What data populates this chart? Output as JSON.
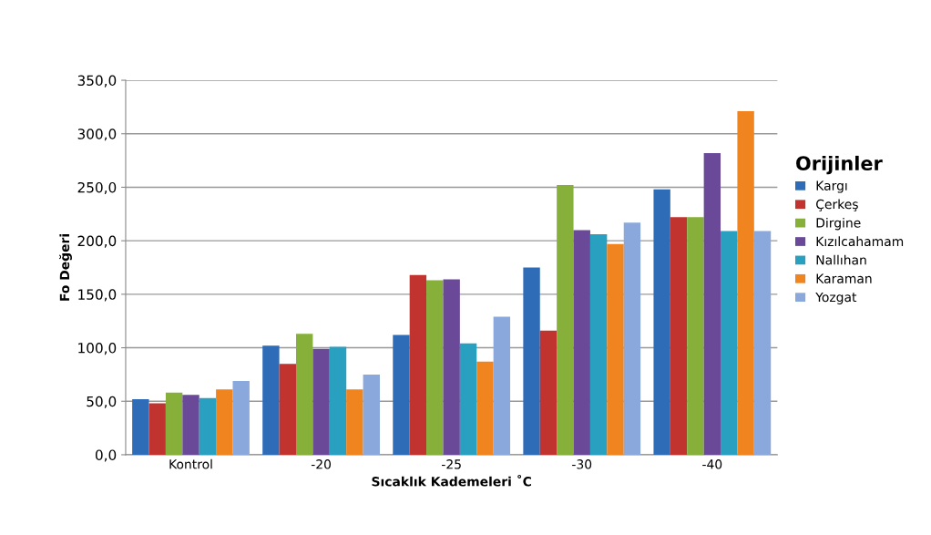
{
  "chart_data": {
    "type": "bar",
    "xlabel": "Sıcaklık Kademeleri ˚C",
    "ylabel": "Fo Değeri",
    "legend_title": "Orijinler",
    "categories": [
      "Kontrol",
      "-20",
      "-25",
      "-30",
      "-40"
    ],
    "series": [
      {
        "name": "Kargı",
        "color": "#2f6cb8",
        "values": [
          52,
          102,
          112,
          175,
          248
        ]
      },
      {
        "name": "Çerkeş",
        "color": "#c0332f",
        "values": [
          48,
          85,
          168,
          116,
          222
        ]
      },
      {
        "name": "Dirgine",
        "color": "#86b03a",
        "values": [
          58,
          113,
          163,
          252,
          222
        ]
      },
      {
        "name": "Kızılcahamam",
        "color": "#6a4a98",
        "values": [
          56,
          99,
          164,
          210,
          282
        ]
      },
      {
        "name": "Nallıhan",
        "color": "#2aa0c0",
        "values": [
          53,
          101,
          104,
          206,
          209
        ]
      },
      {
        "name": "Karaman",
        "color": "#f08520",
        "values": [
          61,
          61,
          87,
          197,
          321
        ]
      },
      {
        "name": "Yozgat",
        "color": "#8aa8dc",
        "values": [
          69,
          75,
          129,
          217,
          209
        ]
      }
    ],
    "ylim": [
      0,
      350
    ],
    "yticks": [
      {
        "value": 0,
        "label": "0,0"
      },
      {
        "value": 50,
        "label": "50,0"
      },
      {
        "value": 100,
        "label": "100,0"
      },
      {
        "value": 150,
        "label": "150,0"
      },
      {
        "value": 200,
        "label": "200,0"
      },
      {
        "value": 250,
        "label": "250,0"
      },
      {
        "value": 300,
        "label": "300,0"
      },
      {
        "value": 350,
        "label": "350,0"
      }
    ],
    "grid": "y",
    "legend": "right"
  }
}
